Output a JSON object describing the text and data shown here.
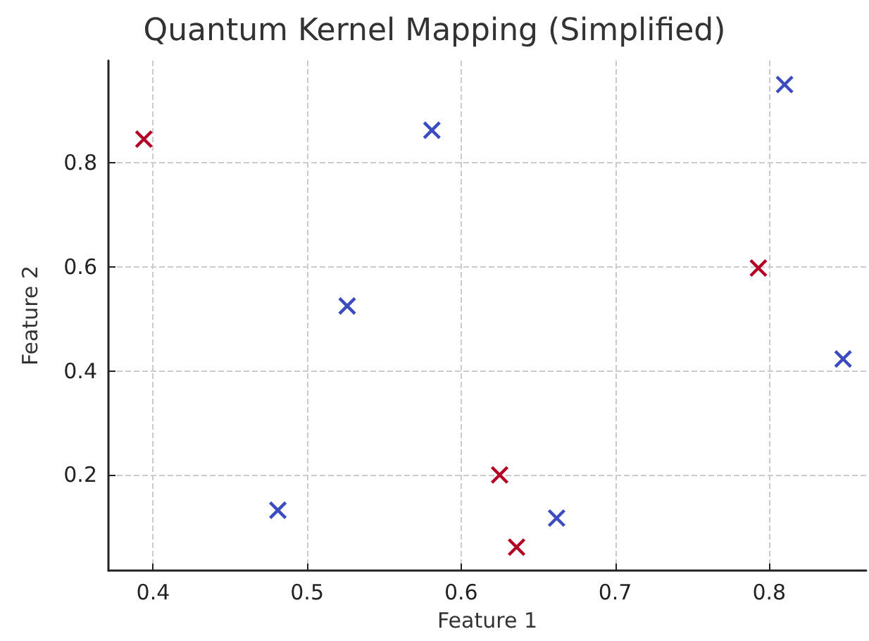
{
  "chart_data": {
    "type": "scatter",
    "title": "Quantum Kernel Mapping (Simplified)",
    "xlabel": "Feature 1",
    "ylabel": "Feature 2",
    "series": [
      {
        "color": "#3b4cc0",
        "x": [
          0.581,
          0.81,
          0.526,
          0.848,
          0.481,
          0.662
        ],
        "values": [
          0.863,
          0.951,
          0.525,
          0.423,
          0.132,
          0.117
        ]
      },
      {
        "color": "#b40426",
        "x": [
          0.394,
          0.793,
          0.625,
          0.636
        ],
        "values": [
          0.846,
          0.598,
          0.2,
          0.061
        ]
      }
    ],
    "xlim": [
      0.371,
      0.863
    ],
    "ylim": [
      0.016,
      0.997
    ],
    "xticks": [
      0.4,
      0.5,
      0.6,
      0.7,
      0.8
    ],
    "yticks": [
      0.2,
      0.4,
      0.6,
      0.8
    ],
    "grid": true,
    "marker": "cross"
  }
}
